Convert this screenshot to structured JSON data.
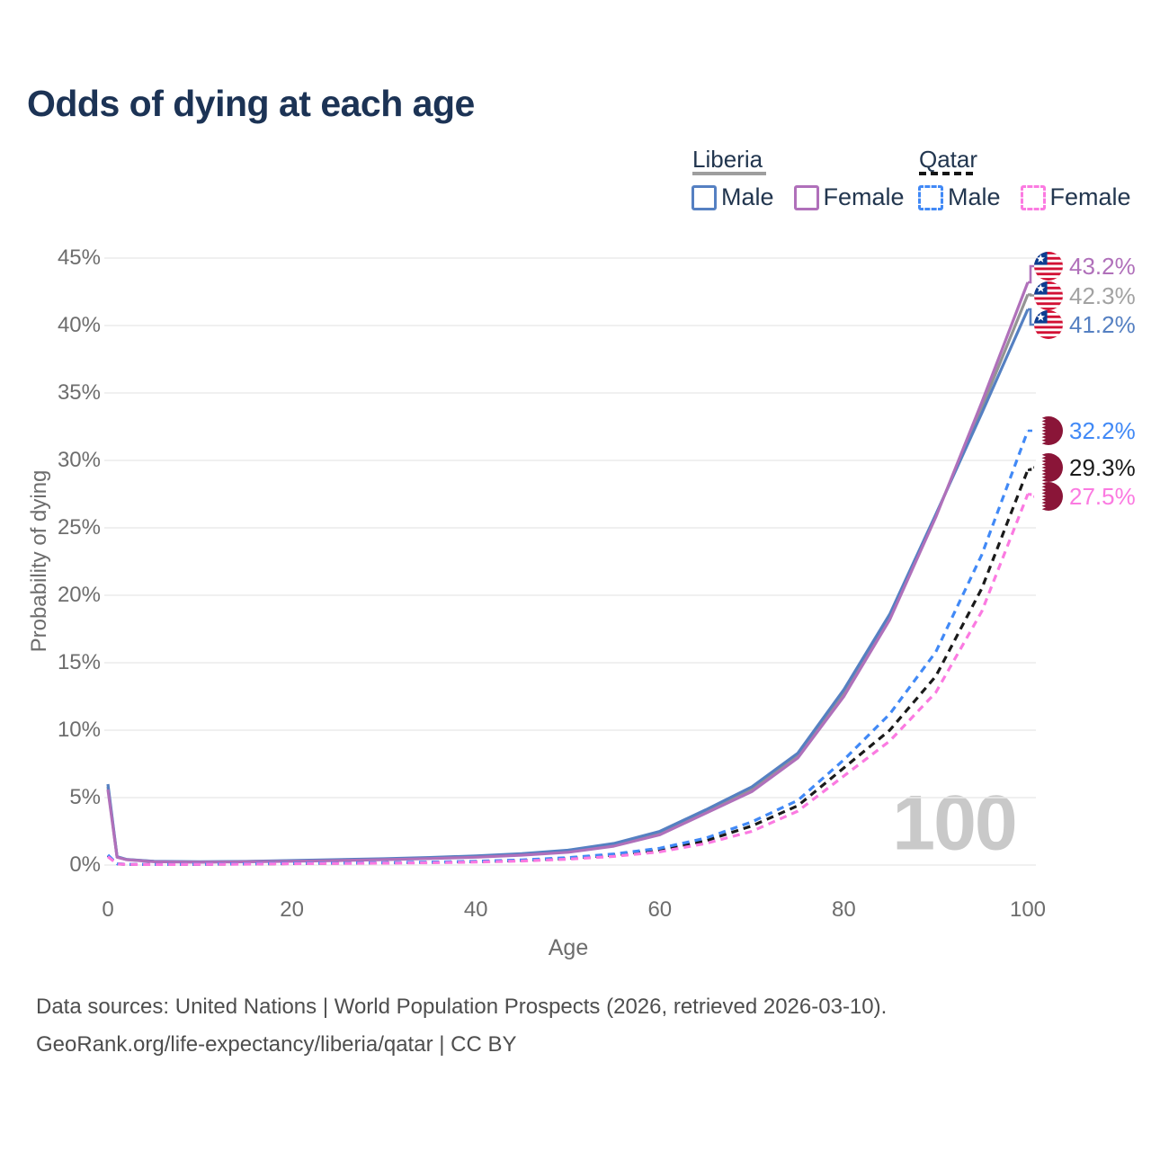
{
  "page": {
    "title": "Odds of dying at each age"
  },
  "legend": {
    "groups": [
      {
        "label": "Liberia",
        "line_style": "solid",
        "underline_color": "#9e9e9e",
        "items": [
          {
            "label": "Male",
            "color": "#5580c2"
          },
          {
            "label": "Female",
            "color": "#b070ba"
          }
        ]
      },
      {
        "label": "Qatar",
        "line_style": "dashed",
        "underline_color": "#141414",
        "items": [
          {
            "label": "Male",
            "color": "#4189f6"
          },
          {
            "label": "Female",
            "color": "#fb7ae1"
          }
        ]
      }
    ]
  },
  "axes": {
    "x": {
      "title": "Age",
      "ticks": [
        {
          "value": 0,
          "label": "0"
        },
        {
          "value": 20,
          "label": "20"
        },
        {
          "value": 40,
          "label": "40"
        },
        {
          "value": 60,
          "label": "60"
        },
        {
          "value": 80,
          "label": "80"
        },
        {
          "value": 100,
          "label": "100"
        }
      ]
    },
    "y": {
      "title": "Probability of dying",
      "ticks": [
        {
          "value": 0,
          "label": "0%"
        },
        {
          "value": 5,
          "label": "5%"
        },
        {
          "value": 10,
          "label": "10%"
        },
        {
          "value": 15,
          "label": "15%"
        },
        {
          "value": 20,
          "label": "20%"
        },
        {
          "value": 25,
          "label": "25%"
        },
        {
          "value": 30,
          "label": "30%"
        },
        {
          "value": 35,
          "label": "35%"
        },
        {
          "value": 40,
          "label": "40%"
        },
        {
          "value": 45,
          "label": "45%"
        }
      ]
    }
  },
  "watermark": "100",
  "end_labels": [
    {
      "series": "liberia_female",
      "value_label": "43.2%",
      "flag": "liberia-flag-icon",
      "color": "#b070ba"
    },
    {
      "series": "liberia_both",
      "value_label": "42.3%",
      "flag": "liberia-flag-icon",
      "color": "#a2a2a2"
    },
    {
      "series": "liberia_male",
      "value_label": "41.2%",
      "flag": "liberia-flag-icon",
      "color": "#5580c2"
    },
    {
      "series": "qatar_male",
      "value_label": "32.2%",
      "flag": "qatar-flag-icon",
      "color": "#4189f6"
    },
    {
      "series": "qatar_both",
      "value_label": "29.3%",
      "flag": "qatar-flag-icon",
      "color": "#1a1a1a"
    },
    {
      "series": "qatar_female",
      "value_label": "27.5%",
      "flag": "qatar-flag-icon",
      "color": "#fb7ae1"
    }
  ],
  "footer": {
    "line1": "Data sources: United Nations | World Population Prospects (2026, retrieved 2026-03-10).",
    "line2": "GeoRank.org/life-expectancy/liberia/qatar | CC BY"
  },
  "chart_data": {
    "type": "line",
    "title": "Odds of dying at each age",
    "xlabel": "Age",
    "ylabel": "Probability of dying",
    "xlim": [
      0,
      100
    ],
    "ylim": [
      0,
      45
    ],
    "grid": true,
    "legend_position": "top-right",
    "x": [
      0,
      1,
      2,
      5,
      10,
      15,
      20,
      25,
      30,
      35,
      40,
      45,
      50,
      55,
      60,
      65,
      70,
      75,
      80,
      85,
      90,
      95,
      100
    ],
    "series": [
      {
        "name": "Liberia Both sexes",
        "key": "liberia_both",
        "color": "#949494",
        "dash": "solid",
        "end_value": 42.3,
        "values": [
          5.8,
          0.6,
          0.41,
          0.27,
          0.22,
          0.26,
          0.31,
          0.37,
          0.44,
          0.52,
          0.63,
          0.79,
          1.03,
          1.5,
          2.38,
          3.98,
          5.63,
          8.13,
          12.75,
          18.4,
          25.9,
          33.9,
          42.3
        ]
      },
      {
        "name": "Liberia Male",
        "key": "liberia_male",
        "color": "#5580c2",
        "dash": "solid",
        "end_value": 41.2,
        "values": [
          6.0,
          0.62,
          0.42,
          0.28,
          0.24,
          0.27,
          0.33,
          0.4,
          0.47,
          0.56,
          0.68,
          0.85,
          1.1,
          1.6,
          2.5,
          4.1,
          5.8,
          8.3,
          13.0,
          18.6,
          26.0,
          33.5,
          41.2
        ]
      },
      {
        "name": "Liberia Female",
        "key": "liberia_female",
        "color": "#b070ba",
        "dash": "solid",
        "end_value": 43.2,
        "values": [
          5.6,
          0.58,
          0.4,
          0.25,
          0.21,
          0.24,
          0.28,
          0.33,
          0.4,
          0.48,
          0.58,
          0.73,
          0.95,
          1.4,
          2.25,
          3.85,
          5.45,
          7.95,
          12.5,
          18.2,
          25.8,
          34.3,
          43.2
        ]
      },
      {
        "name": "Qatar Both sexes",
        "key": "qatar_both",
        "color": "#1a1a1a",
        "dash": "dashed",
        "end_value": 29.3,
        "values": [
          0.7,
          0.08,
          0.055,
          0.045,
          0.055,
          0.08,
          0.11,
          0.13,
          0.16,
          0.2,
          0.25,
          0.34,
          0.49,
          0.74,
          1.12,
          1.8,
          2.9,
          4.4,
          7.2,
          10.0,
          14.0,
          20.5,
          29.3
        ]
      },
      {
        "name": "Qatar Male",
        "key": "qatar_male",
        "color": "#4189f6",
        "dash": "dashed",
        "end_value": 32.2,
        "values": [
          0.75,
          0.09,
          0.06,
          0.05,
          0.06,
          0.09,
          0.13,
          0.15,
          0.18,
          0.22,
          0.28,
          0.38,
          0.55,
          0.82,
          1.25,
          2.0,
          3.2,
          4.8,
          7.8,
          11.2,
          15.8,
          23.0,
          32.2
        ]
      },
      {
        "name": "Qatar Female",
        "key": "qatar_female",
        "color": "#fb7ae1",
        "dash": "dashed",
        "end_value": 27.5,
        "values": [
          0.62,
          0.08,
          0.05,
          0.04,
          0.05,
          0.07,
          0.1,
          0.12,
          0.14,
          0.17,
          0.22,
          0.3,
          0.43,
          0.64,
          0.98,
          1.6,
          2.5,
          4.0,
          6.6,
          9.2,
          12.8,
          18.8,
          27.5
        ]
      }
    ]
  }
}
